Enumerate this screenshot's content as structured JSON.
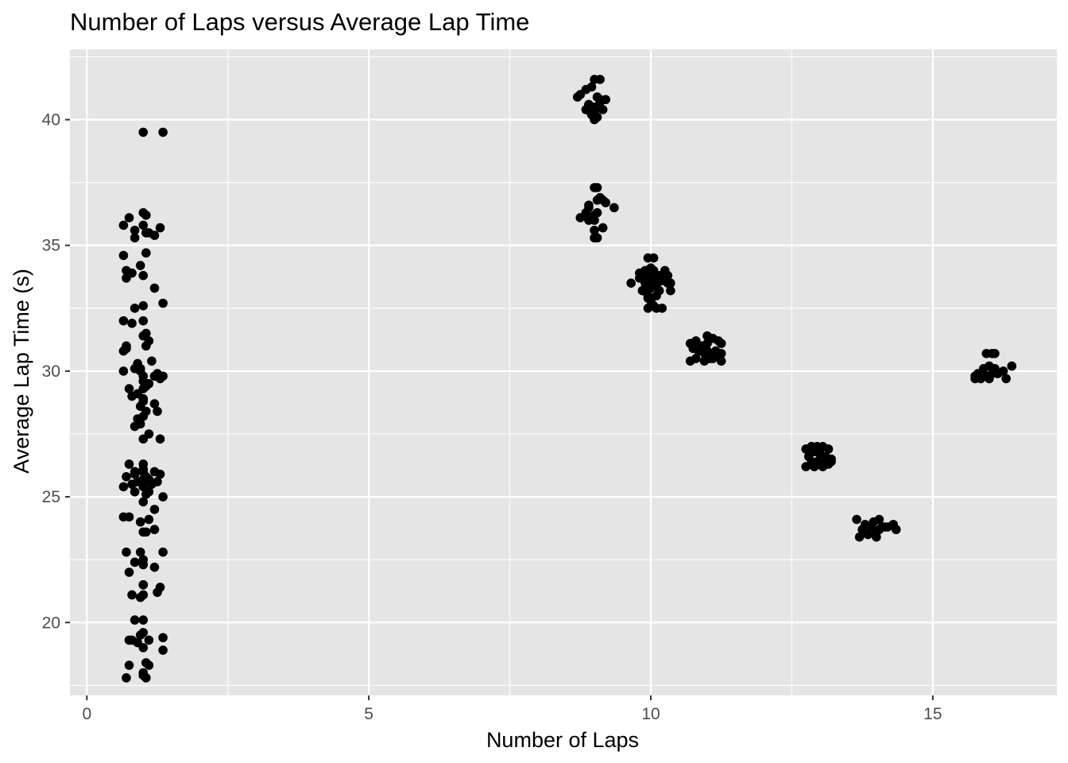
{
  "chart_data": {
    "type": "scatter",
    "title": "Number of Laps versus Average Lap Time",
    "xlabel": "Number of Laps",
    "ylabel": "Average Lap Time (s)",
    "xlim": [
      -0.3,
      17.2
    ],
    "ylim": [
      17.1,
      42.8
    ],
    "xticks": [
      0,
      5,
      10,
      15
    ],
    "yticks": [
      20,
      25,
      30,
      35,
      40
    ],
    "xminor": [
      2.5,
      7.5,
      12.5
    ],
    "yminor": [
      17.5,
      22.5,
      27.5,
      32.5,
      37.5,
      42.5
    ],
    "grid": true,
    "point_color": "#000000",
    "panel_color": "#e5e5e5",
    "grid_color": "#ffffff",
    "series": [
      {
        "x": [
          1.0,
          1.35,
          0.75,
          0.85,
          1.05,
          1.0,
          1.1,
          1.3,
          1.2,
          0.65,
          0.85,
          1.05,
          1.0,
          0.7,
          0.7,
          0.65,
          0.8,
          1.2,
          0.95,
          1.05,
          1.0,
          0.85,
          1.35,
          1.0,
          1.0,
          1.05,
          1.1,
          0.65,
          0.8,
          1.0,
          1.05,
          0.9,
          0.7,
          1.15,
          0.65,
          0.85,
          0.95,
          1.2,
          1.0,
          1.05,
          0.9,
          1.25,
          1.0,
          1.1,
          0.75,
          0.8,
          1.3,
          1.0,
          0.95,
          1.2,
          0.9,
          1.05,
          0.85,
          1.0,
          1.3,
          0.95,
          1.25,
          1.1,
          1.0,
          1.0,
          0.75,
          0.85,
          1.05,
          1.15,
          1.0,
          1.2,
          0.7,
          1.0,
          0.8,
          1.1,
          0.65,
          1.05,
          0.9,
          1.25,
          0.85,
          1.0,
          1.2,
          0.75,
          0.95,
          1.1,
          0.65,
          1.0,
          1.2,
          1.05,
          1.35,
          0.95,
          0.7,
          1.0,
          1.2,
          1.0,
          0.75,
          0.85,
          1.0,
          1.3,
          1.0,
          0.8,
          0.95,
          1.0,
          1.25,
          1.0,
          0.85,
          1.35,
          0.75,
          0.95,
          1.0,
          1.1,
          0.9,
          1.35,
          0.8,
          1.0,
          1.05,
          1.1,
          0.75,
          1.0,
          1.05,
          1.0,
          0.7,
          0.85,
          1.0,
          1.3,
          1.0,
          1.1,
          1.35,
          0.95,
          1.0,
          1.35,
          0.65,
          0.7,
          1.0,
          1.0
        ],
        "y": [
          39.5,
          39.5,
          36.1,
          35.6,
          36.2,
          35.8,
          35.5,
          35.7,
          35.4,
          35.8,
          35.3,
          35.5,
          36.3,
          34.0,
          33.7,
          34.6,
          33.9,
          33.3,
          34.2,
          34.7,
          33.8,
          32.5,
          32.7,
          32.0,
          32.6,
          31.5,
          31.2,
          32.0,
          31.9,
          31.4,
          31.0,
          30.3,
          30.9,
          30.4,
          30.8,
          30.1,
          30.0,
          29.8,
          29.8,
          29.4,
          29.1,
          29.9,
          29.3,
          29.5,
          29.3,
          29.0,
          29.7,
          28.8,
          28.6,
          28.7,
          28.1,
          28.4,
          27.8,
          27.3,
          27.3,
          27.9,
          28.4,
          27.5,
          26.3,
          26.0,
          26.3,
          25.9,
          25.8,
          25.5,
          25.6,
          26.0,
          25.8,
          25.4,
          25.5,
          25.7,
          25.4,
          25.1,
          25.6,
          25.6,
          25.2,
          24.8,
          24.5,
          24.2,
          24.0,
          24.1,
          24.2,
          23.6,
          23.7,
          23.6,
          22.8,
          22.8,
          22.8,
          22.5,
          22.2,
          22.3,
          22.0,
          22.4,
          21.5,
          21.4,
          21.1,
          21.1,
          21.0,
          21.5,
          21.2,
          20.1,
          20.1,
          19.4,
          19.3,
          19.5,
          19.6,
          19.3,
          19.2,
          18.9,
          19.3,
          19.0,
          18.4,
          18.3,
          18.3,
          18.0,
          17.8,
          17.9,
          17.8,
          26.0,
          26.1,
          25.9,
          25.7,
          25.2,
          25.0,
          30.1,
          29.6,
          29.8,
          30.0,
          31.0,
          28.9,
          28.2
        ]
      },
      {
        "x": [
          9.0,
          9.1,
          8.85,
          8.75,
          8.95,
          9.05,
          9.2,
          8.9,
          9.0,
          9.1,
          8.7,
          9.0,
          9.15,
          8.95,
          9.05,
          8.85,
          9.0,
          9.1,
          8.9,
          9.0,
          9.05,
          9.15,
          9.05,
          8.9,
          9.0,
          9.2,
          9.35,
          8.85,
          9.05,
          9.0,
          8.9,
          9.15,
          9.0,
          9.05,
          8.75,
          9.0,
          8.9,
          9.1,
          9.0
        ],
        "y": [
          41.6,
          41.6,
          41.2,
          41.0,
          41.3,
          40.9,
          40.8,
          40.6,
          40.5,
          40.8,
          40.9,
          40.3,
          40.4,
          40.2,
          40.1,
          40.4,
          40.0,
          40.7,
          40.6,
          37.3,
          37.3,
          36.8,
          36.8,
          36.6,
          36.2,
          36.7,
          36.5,
          36.3,
          36.3,
          36.0,
          36.0,
          35.7,
          35.6,
          35.3,
          36.1,
          35.3,
          36.5,
          36.9,
          40.2
        ]
      },
      {
        "x": [
          9.65,
          9.8,
          9.9,
          10.0,
          10.05,
          10.15,
          10.25,
          10.1,
          9.95,
          10.05,
          10.2,
          10.35,
          9.85,
          9.95,
          10.0,
          10.1,
          10.3,
          9.9,
          10.05,
          10.15,
          10.35,
          9.95,
          10.0,
          10.1,
          9.95,
          10.05,
          10.2,
          9.8,
          9.9,
          10.0,
          9.95,
          10.05,
          10.1,
          9.9,
          10.0,
          10.3
        ],
        "y": [
          33.5,
          33.7,
          34.0,
          34.1,
          34.0,
          33.8,
          34.0,
          33.7,
          34.5,
          34.5,
          33.6,
          33.5,
          33.2,
          33.3,
          33.4,
          33.0,
          33.5,
          33.6,
          33.6,
          33.2,
          33.2,
          32.9,
          32.8,
          32.5,
          32.5,
          32.6,
          32.5,
          33.9,
          33.5,
          33.8,
          33.0,
          33.9,
          33.4,
          33.8,
          33.3,
          33.8
        ]
      },
      {
        "x": [
          10.7,
          10.8,
          10.9,
          11.0,
          11.05,
          11.1,
          11.2,
          11.25,
          10.75,
          10.85,
          10.95,
          11.0,
          11.05,
          11.15,
          11.25,
          10.7,
          10.8,
          10.95,
          11.05,
          11.15,
          11.25,
          10.9,
          11.0,
          11.1,
          11.15
        ],
        "y": [
          31.1,
          31.2,
          31.0,
          31.4,
          31.3,
          31.3,
          31.2,
          31.1,
          30.9,
          30.8,
          30.7,
          30.8,
          30.6,
          30.6,
          30.7,
          30.4,
          30.5,
          30.4,
          30.5,
          30.6,
          30.4,
          30.9,
          31.1,
          30.5,
          30.8
        ]
      },
      {
        "x": [
          12.75,
          12.85,
          12.95,
          13.05,
          13.15,
          12.8,
          12.9,
          13.0,
          13.1,
          13.2,
          12.85,
          12.95,
          13.05,
          13.15,
          12.75,
          12.9,
          13.05,
          13.2,
          13.0
        ],
        "y": [
          26.9,
          27.0,
          27.0,
          27.0,
          26.9,
          26.6,
          26.8,
          26.7,
          26.6,
          26.5,
          26.4,
          26.4,
          26.4,
          26.3,
          26.2,
          26.2,
          26.2,
          26.4,
          26.9
        ]
      },
      {
        "x": [
          13.65,
          13.8,
          13.95,
          14.05,
          14.15,
          14.3,
          13.75,
          13.9,
          14.0,
          14.1,
          14.35,
          13.85,
          14.0,
          13.7,
          14.05,
          14.2
        ],
        "y": [
          24.1,
          23.9,
          24.0,
          24.1,
          23.8,
          23.9,
          23.7,
          23.8,
          23.6,
          23.8,
          23.7,
          23.5,
          23.4,
          23.4,
          23.7,
          23.8
        ]
      },
      {
        "x": [
          15.75,
          15.9,
          16.0,
          16.1,
          16.25,
          16.4,
          15.8,
          15.95,
          16.05,
          16.15,
          16.3,
          15.85,
          16.0,
          16.1,
          15.95,
          16.05,
          15.75,
          16.15
        ],
        "y": [
          29.8,
          30.1,
          30.2,
          30.1,
          30.0,
          30.2,
          29.9,
          29.8,
          29.9,
          29.9,
          29.7,
          29.7,
          29.7,
          30.7,
          30.7,
          30.7,
          29.7,
          29.9
        ]
      }
    ]
  }
}
